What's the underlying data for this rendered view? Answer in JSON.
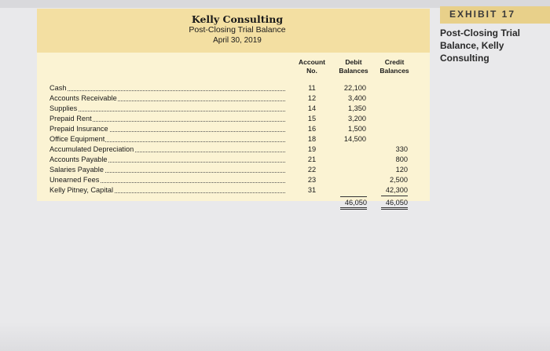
{
  "header": {
    "company": "Kelly Consulting",
    "statement": "Post-Closing Trial Balance",
    "date": "April 30, 2019"
  },
  "columns": {
    "account_line1": "Account",
    "account_line2": "No.",
    "debit_line1": "Debit",
    "debit_line2": "Balances",
    "credit_line1": "Credit",
    "credit_line2": "Balances"
  },
  "rows": [
    {
      "name": "Cash",
      "no": "11",
      "debit": "22,100",
      "credit": ""
    },
    {
      "name": "Accounts Receivable",
      "no": "12",
      "debit": "3,400",
      "credit": ""
    },
    {
      "name": "Supplies",
      "no": "14",
      "debit": "1,350",
      "credit": ""
    },
    {
      "name": "Prepaid Rent",
      "no": "15",
      "debit": "3,200",
      "credit": ""
    },
    {
      "name": "Prepaid Insurance",
      "no": "16",
      "debit": "1,500",
      "credit": ""
    },
    {
      "name": "Office Equipment",
      "no": "18",
      "debit": "14,500",
      "credit": ""
    },
    {
      "name": "Accumulated Depreciation",
      "no": "19",
      "debit": "",
      "credit": "330"
    },
    {
      "name": "Accounts Payable",
      "no": "21",
      "debit": "",
      "credit": "800"
    },
    {
      "name": "Salaries Payable",
      "no": "22",
      "debit": "",
      "credit": "120"
    },
    {
      "name": "Unearned Fees",
      "no": "23",
      "debit": "",
      "credit": "2,500"
    },
    {
      "name": "Kelly Pitney, Capital",
      "no": "31",
      "debit": "",
      "credit": "42,300"
    }
  ],
  "totals": {
    "debit": "46,050",
    "credit": "46,050"
  },
  "exhibit": {
    "label": "EXHIBIT 17",
    "caption": "Post-Closing Trial Balance, Kelly Consulting"
  },
  "colors": {
    "header_band": "#f3dfa2",
    "panel_body": "#fbf3d3",
    "exhibit_tab": "#e8d08a",
    "background": "#e9e9eb"
  }
}
